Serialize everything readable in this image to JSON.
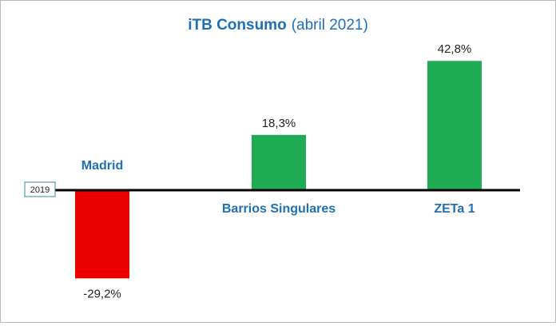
{
  "chart_data": {
    "type": "bar",
    "title_bold": "iTB Consumo",
    "title_rest": "(abril 2021)",
    "baseline_label": "2019",
    "categories": [
      "Madrid",
      "Barrios Singulares",
      "ZETa 1"
    ],
    "values": [
      -29.2,
      18.3,
      42.8
    ],
    "data_labels": [
      "-29,2%",
      "18,3%",
      "42,8%"
    ],
    "colors": [
      "#ee0000",
      "#1fac55",
      "#1fac55"
    ],
    "title_color": "#1f6fb5",
    "category_label_color": "#1f6fb5",
    "ylim": [
      -35,
      50
    ],
    "grid": false,
    "legend": "none"
  }
}
